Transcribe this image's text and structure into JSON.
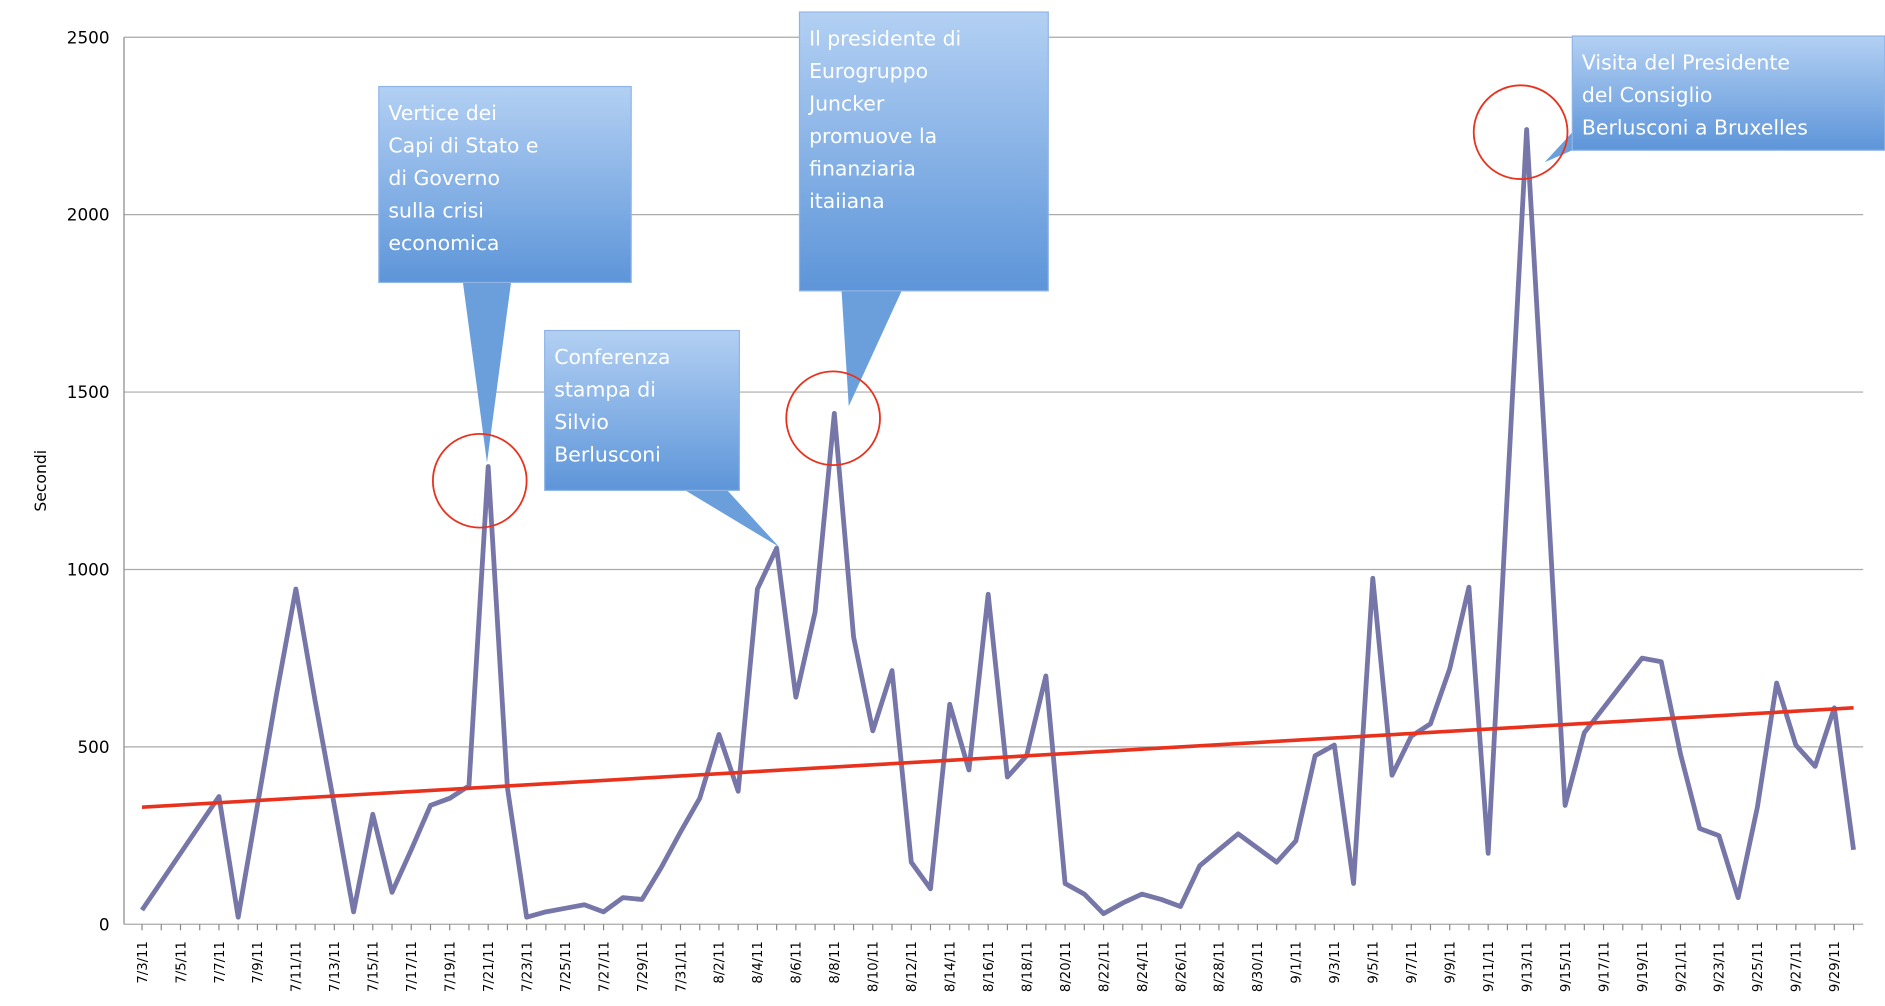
{
  "chart_data": {
    "type": "line",
    "y_label": "Secondi",
    "categories": [
      "7/3/11",
      null,
      "7/5/11",
      null,
      "7/7/11",
      null,
      "7/9/11",
      null,
      "7/11/11",
      null,
      "7/13/11",
      null,
      "7/15/11",
      null,
      "7/17/11",
      null,
      "7/19/11",
      null,
      "7/21/11",
      null,
      "7/23/11",
      null,
      "7/25/11",
      null,
      "7/27/11",
      null,
      "7/29/11",
      null,
      "7/31/11",
      null,
      "8/2/11",
      null,
      "8/4/11",
      null,
      "8/6/11",
      null,
      "8/8/11",
      null,
      "8/10/11",
      null,
      "8/12/11",
      null,
      "8/14/11",
      null,
      "8/16/11",
      null,
      "8/18/11",
      null,
      "8/20/11",
      null,
      "8/22/11",
      null,
      "8/24/11",
      null,
      "8/26/11",
      null,
      "8/28/11",
      null,
      "8/30/11",
      null,
      "9/1/11",
      null,
      "9/3/11",
      null,
      "9/5/11",
      null,
      "9/7/11",
      null,
      "9/9/11",
      null,
      "9/11/11",
      null,
      "9/13/11",
      null,
      "9/15/11",
      null,
      "9/17/11",
      null,
      "9/19/11",
      null,
      "9/21/11",
      null,
      "9/23/11",
      null,
      "9/25/11",
      null,
      "9/27/11",
      null,
      "9/29/11",
      null
    ],
    "series": [
      {
        "color": "#7676a8",
        "values": [
          40,
          120,
          200,
          280,
          360,
          20,
          335,
          650,
          945,
          630,
          335,
          35,
          310,
          90,
          210,
          335,
          355,
          390,
          1290,
          385,
          20,
          35,
          45,
          55,
          35,
          75,
          70,
          160,
          260,
          355,
          535,
          375,
          945,
          1060,
          640,
          880,
          1440,
          810,
          545,
          715,
          175,
          100,
          620,
          435,
          930,
          415,
          475,
          700,
          115,
          85,
          30,
          60,
          85,
          70,
          50,
          165,
          210,
          255,
          215,
          175,
          235,
          475,
          505,
          115,
          975,
          420,
          530,
          565,
          720,
          950,
          200,
          1220,
          2240,
          1300,
          335,
          540,
          610,
          680,
          750,
          740,
          480,
          270,
          250,
          75,
          330,
          680,
          505,
          445,
          610,
          210
        ]
      }
    ],
    "trendline": {
      "start": 330,
      "end": 610,
      "color": "#e8321e"
    },
    "ylim": [
      0,
      2500
    ],
    "yticks": [
      0,
      500,
      1000,
      1500,
      2000,
      2500
    ],
    "grid": true,
    "annotations": [
      {
        "lines": [
          "Vertice dei",
          "Capi di Stato e",
          "di Governo",
          "sulla crisi",
          "economica"
        ]
      },
      {
        "lines": [
          "Conferenza",
          "stampa di",
          "Silvio",
          "Berlusconi"
        ]
      },
      {
        "lines": [
          "Il presidente di",
          "Eurogruppo",
          "Juncker",
          "promuove la",
          "finanziaria",
          "itaiiana"
        ]
      },
      {
        "lines": [
          "Visita del Presidente",
          "del Consiglio",
          "Berlusconi a Bruxelles"
        ]
      }
    ]
  }
}
